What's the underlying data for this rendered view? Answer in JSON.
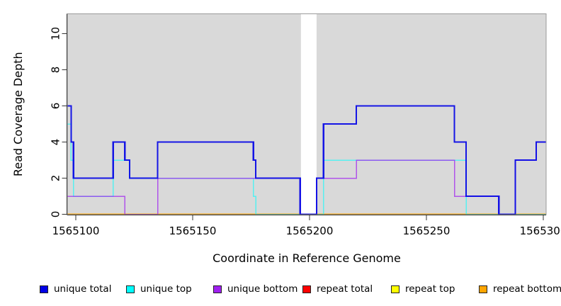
{
  "chart_data": {
    "type": "line",
    "subtype": "step-coverage-plot",
    "title": "",
    "xlabel": "Coordinate in Reference Genome",
    "ylabel": "Read Coverage Depth",
    "x_ticks": [
      1565100,
      1565150,
      1565200,
      1565250,
      1565300
    ],
    "y_ticks": [
      0,
      2,
      4,
      6,
      8,
      10
    ],
    "xlim": [
      1565096,
      1565301
    ],
    "ylim": [
      0,
      11.1
    ],
    "panel_bg": "#d9d9d9",
    "axis_color": "#333333",
    "border_color": "#9a9a9a",
    "gap_region": {
      "x_start": 1565196,
      "x_end": 1565203,
      "color": "#ffffff"
    },
    "legend_position": "bottom",
    "grid": false,
    "series": [
      {
        "name": "repeat total",
        "color": "#ff0000",
        "opacity": 1,
        "width": 1.5,
        "steps": [
          [
            1565096,
            0
          ]
        ]
      },
      {
        "name": "repeat top",
        "color": "#ffff00",
        "opacity": 1,
        "width": 1.5,
        "steps": [
          [
            1565096,
            0
          ]
        ]
      },
      {
        "name": "repeat bottom",
        "color": "#ffa500",
        "opacity": 1,
        "width": 2,
        "steps": [
          [
            1565096,
            0
          ]
        ]
      },
      {
        "name": "unique top",
        "color": "#00ffff",
        "opacity": 0.6,
        "width": 1.5,
        "steps": [
          [
            1565096,
            5
          ],
          [
            1565098,
            3
          ],
          [
            1565099,
            1
          ],
          [
            1565116,
            3
          ],
          [
            1565123,
            2
          ],
          [
            1565176,
            1
          ],
          [
            1565177,
            0
          ],
          [
            1565206,
            3
          ],
          [
            1565267,
            0
          ]
        ]
      },
      {
        "name": "unique bottom",
        "color": "#a020f0",
        "opacity": 0.72,
        "width": 1.5,
        "steps": [
          [
            1565096,
            1
          ],
          [
            1565121,
            0
          ],
          [
            1565135,
            2
          ],
          [
            1565196,
            0
          ],
          [
            1565203,
            2
          ],
          [
            1565220,
            3
          ],
          [
            1565262,
            1
          ],
          [
            1565281,
            0
          ],
          [
            1565288,
            3
          ],
          [
            1565297,
            4
          ]
        ]
      },
      {
        "name": "unique total",
        "color": "#0b0be6",
        "opacity": 0.95,
        "width": 2.2,
        "steps": [
          [
            1565096,
            6
          ],
          [
            1565098,
            4
          ],
          [
            1565099,
            2
          ],
          [
            1565116,
            4
          ],
          [
            1565121,
            3
          ],
          [
            1565123,
            2
          ],
          [
            1565135,
            4
          ],
          [
            1565176,
            3
          ],
          [
            1565177,
            2
          ],
          [
            1565196,
            0
          ],
          [
            1565203,
            2
          ],
          [
            1565206,
            5
          ],
          [
            1565220,
            6
          ],
          [
            1565262,
            4
          ],
          [
            1565267,
            1
          ],
          [
            1565281,
            0
          ],
          [
            1565288,
            3
          ],
          [
            1565297,
            4
          ]
        ]
      }
    ]
  },
  "legend": {
    "items": [
      {
        "label": "unique total",
        "color": "#0000e6"
      },
      {
        "label": "unique top",
        "color": "#00ffff"
      },
      {
        "label": "unique bottom",
        "color": "#a020f0"
      },
      {
        "label": "repeat total",
        "color": "#ff0000"
      },
      {
        "label": "repeat top",
        "color": "#ffff00"
      },
      {
        "label": "repeat bottom",
        "color": "#ffa500"
      }
    ]
  }
}
